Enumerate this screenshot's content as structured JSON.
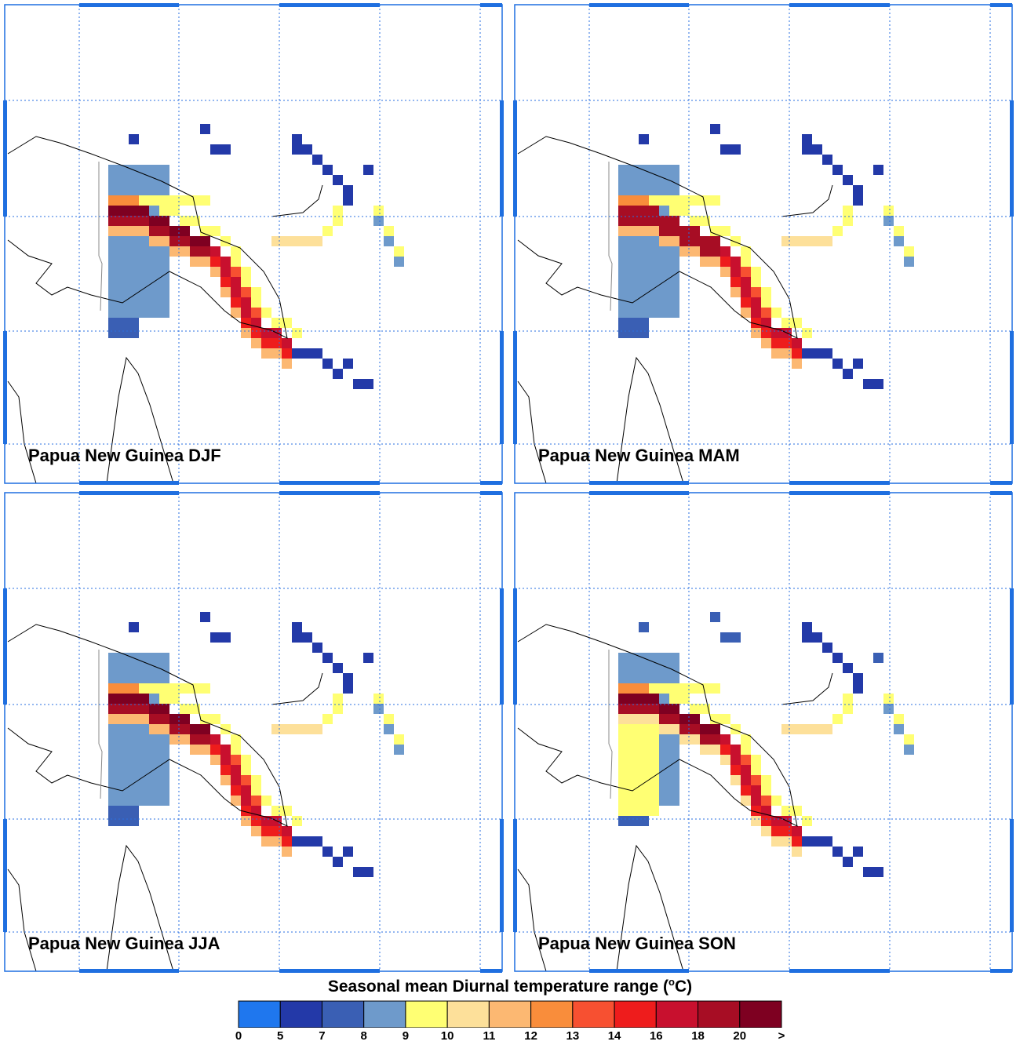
{
  "figure": {
    "colorbar_title": "Seasonal mean Diurnal temperature range (",
    "colorbar_unit_sup": "o",
    "colorbar_unit_tail": "C)"
  },
  "panels": [
    {
      "title": "Papua New Guinea DJF",
      "season": "DJF"
    },
    {
      "title": "Papua New Guinea MAM",
      "season": "MAM"
    },
    {
      "title": "Papua New Guinea JJA",
      "season": "JJA"
    },
    {
      "title": "Papua New Guinea SON",
      "season": "SON"
    }
  ],
  "colorbar": {
    "bins": [
      {
        "label": "0",
        "color": "#1f77ee"
      },
      {
        "label": "5",
        "color": "#2339a8"
      },
      {
        "label": "7",
        "color": "#3a5fb4"
      },
      {
        "label": "8",
        "color": "#6e9acb"
      },
      {
        "label": "9",
        "color": "#ffff73"
      },
      {
        "label": "10",
        "color": "#fde09a"
      },
      {
        "label": "11",
        "color": "#fcb872"
      },
      {
        "label": "12",
        "color": "#f98d3b"
      },
      {
        "label": "13",
        "color": "#f75031"
      },
      {
        "label": "14",
        "color": "#ee1c1c"
      },
      {
        "label": "16",
        "color": "#c8102e"
      },
      {
        "label": "18",
        "color": "#a70d24"
      },
      {
        "label": "20",
        "color": "#7e0021"
      }
    ],
    "overflow_label": ">"
  }
}
